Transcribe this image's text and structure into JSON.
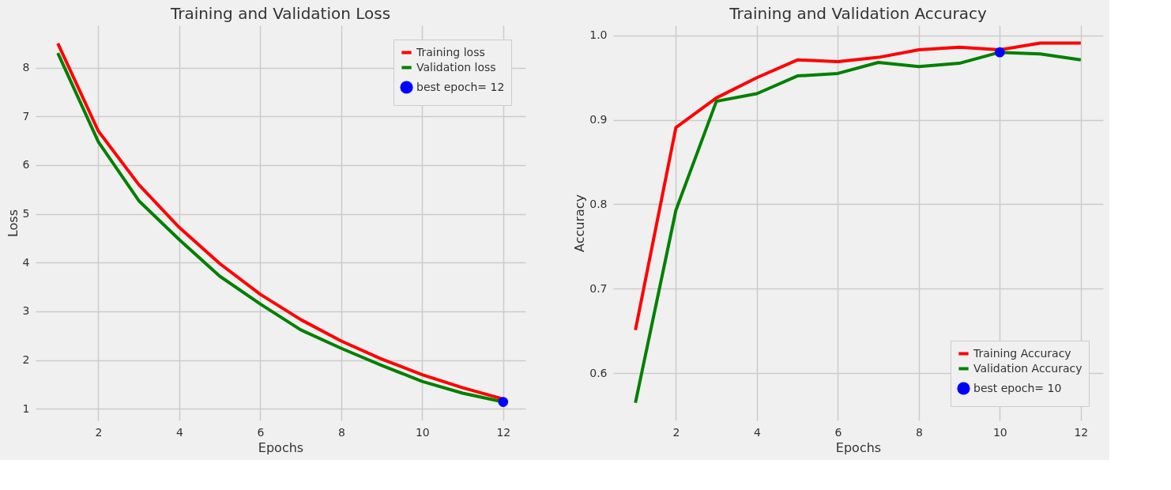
{
  "chart_data": [
    {
      "type": "line",
      "title": "Training and Validation Loss",
      "xlabel": "Epochs",
      "ylabel": "Loss",
      "x": [
        1,
        2,
        3,
        4,
        5,
        6,
        7,
        8,
        9,
        10,
        11,
        12
      ],
      "series": [
        {
          "name": "Training loss",
          "color": "#ff0000",
          "values": [
            8.5,
            6.7,
            5.6,
            4.72,
            3.98,
            3.35,
            2.83,
            2.39,
            2.02,
            1.7,
            1.43,
            1.2
          ]
        },
        {
          "name": "Validation loss",
          "color": "#008000",
          "values": [
            8.3,
            6.48,
            5.27,
            4.47,
            3.72,
            3.15,
            2.62,
            2.24,
            1.89,
            1.56,
            1.32,
            1.14
          ]
        },
        {
          "name": "best epoch= 12",
          "type": "scatter",
          "marker": "circle",
          "color": "#0000ff",
          "x": [
            12
          ],
          "values": [
            1.14
          ]
        }
      ],
      "xlim": [
        0.45,
        12.55
      ],
      "xticks": [
        2,
        4,
        6,
        8,
        10,
        12
      ],
      "ylim": [
        0.76,
        8.87
      ],
      "yticks": [
        1,
        2,
        3,
        4,
        5,
        6,
        7,
        8
      ],
      "grid": true,
      "legend": "top right",
      "line_style": "solid"
    },
    {
      "type": "line",
      "title": "Training and Validation Accuracy",
      "xlabel": "Epochs",
      "ylabel": "Accuracy",
      "x": [
        1,
        2,
        3,
        4,
        5,
        6,
        7,
        8,
        9,
        10,
        11,
        12
      ],
      "series": [
        {
          "name": "Training Accuracy",
          "color": "#ff0000",
          "values": [
            0.651,
            0.891,
            0.926,
            0.95,
            0.971,
            0.969,
            0.974,
            0.983,
            0.986,
            0.983,
            0.991,
            0.991
          ]
        },
        {
          "name": "Validation Accuracy",
          "color": "#008000",
          "values": [
            0.565,
            0.793,
            0.922,
            0.931,
            0.952,
            0.955,
            0.968,
            0.963,
            0.967,
            0.98,
            0.978,
            0.971
          ]
        },
        {
          "name": "best epoch= 10",
          "type": "scatter",
          "marker": "circle",
          "color": "#0000ff",
          "x": [
            10
          ],
          "values": [
            0.98
          ]
        }
      ],
      "xlim": [
        0.45,
        12.55
      ],
      "xticks": [
        2,
        4,
        6,
        8,
        10,
        12
      ],
      "ylim": [
        0.544,
        1.012
      ],
      "yticks": [
        0.6,
        0.7,
        0.8,
        0.9,
        {
          "value": 1.0,
          "label": "1.0"
        }
      ],
      "grid": true,
      "legend": "bottom right",
      "line_style": "solid"
    }
  ]
}
